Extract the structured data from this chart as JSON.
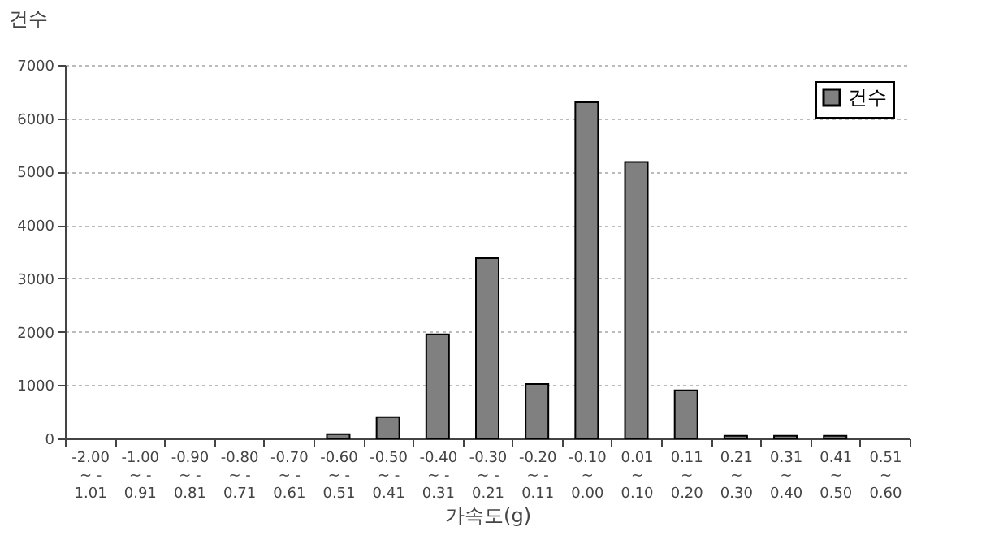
{
  "chart_data": {
    "type": "bar",
    "ylabel": "건수",
    "xlabel": "가속도(g)",
    "categories": [
      "-2.00\n~ -\n1.01",
      "-1.00\n~ -\n0.91",
      "-0.90\n~ -\n0.81",
      "-0.80\n~ -\n0.71",
      "-0.70\n~ -\n0.61",
      "-0.60\n~ -\n0.51",
      "-0.50\n~ -\n0.41",
      "-0.40\n~ -\n0.31",
      "-0.30\n~ -\n0.21",
      "-0.20\n~ -\n0.11",
      "-0.10\n~\n0.00",
      "0.01\n~\n0.10",
      "0.11\n~\n0.20",
      "0.21\n~\n0.30",
      "0.31\n~\n0.40",
      "0.41\n~\n0.50",
      "0.51\n~\n0.60"
    ],
    "series": [
      {
        "name": "건수",
        "color": "#808080",
        "values": [
          0,
          0,
          0,
          0,
          0,
          80,
          400,
          1950,
          3380,
          1020,
          6300,
          5180,
          900,
          50,
          50,
          50,
          0
        ]
      }
    ],
    "ylim": [
      0,
      7000
    ],
    "yticks": [
      0,
      1000,
      2000,
      3000,
      4000,
      5000,
      6000,
      7000
    ],
    "grid": "y",
    "legend": "top right"
  }
}
